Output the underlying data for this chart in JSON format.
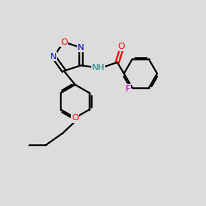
{
  "background_color": "#dcdcdc",
  "bond_color": "#000000",
  "bond_width": 1.8,
  "atom_colors": {
    "C": "#000000",
    "N": "#0000cc",
    "O": "#ff0000",
    "F": "#cc00cc",
    "H": "#008080"
  },
  "figsize": [
    3.0,
    3.0
  ],
  "dpi": 100
}
